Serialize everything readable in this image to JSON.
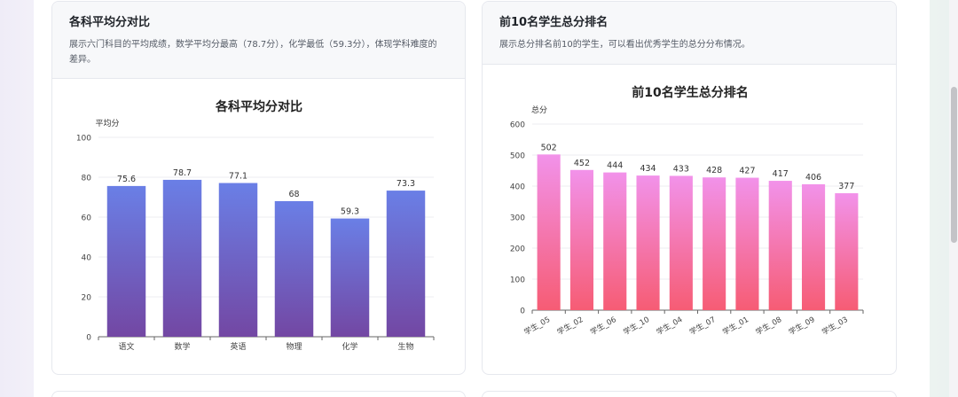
{
  "cards": [
    {
      "title": "各科平均分对比",
      "description_line1": "展示六门科目的平均成绩，数学平均分最高（78.7分），化学最低（59.3分），体现学科难度的",
      "description_line2": "差异。"
    },
    {
      "title": "前10名学生总分排名",
      "description_line1": "展示总分排名前10的学生，可以看出优秀学生的总分分布情况。"
    }
  ],
  "chart_data": [
    {
      "type": "bar",
      "title": "各科平均分对比",
      "ylabel": "平均分",
      "categories": [
        "语文",
        "数学",
        "英语",
        "物理",
        "化学",
        "生物"
      ],
      "values": [
        75.6,
        78.7,
        77.1,
        68,
        59.3,
        73.3
      ],
      "value_labels": [
        "75.6",
        "78.7",
        "77.1",
        "68",
        "59.3",
        "73.3"
      ],
      "ylim": [
        0,
        100
      ],
      "yticks": [
        0,
        20,
        40,
        60,
        80,
        100
      ],
      "grid": true,
      "colors": {
        "top": "#6a7fe6",
        "bottom": "#7347a3"
      }
    },
    {
      "type": "bar",
      "title": "前10名学生总分排名",
      "ylabel": "总分",
      "categories": [
        "学生_05",
        "学生_02",
        "学生_06",
        "学生_10",
        "学生_04",
        "学生_07",
        "学生_01",
        "学生_08",
        "学生_09",
        "学生_03"
      ],
      "values": [
        502,
        452,
        444,
        434,
        433,
        428,
        427,
        417,
        406,
        377
      ],
      "ylim": [
        0,
        600
      ],
      "yticks": [
        0,
        100,
        200,
        300,
        400,
        500,
        600
      ],
      "grid": true,
      "colors": {
        "top": "#f292ea",
        "bottom": "#f65c74"
      }
    }
  ]
}
